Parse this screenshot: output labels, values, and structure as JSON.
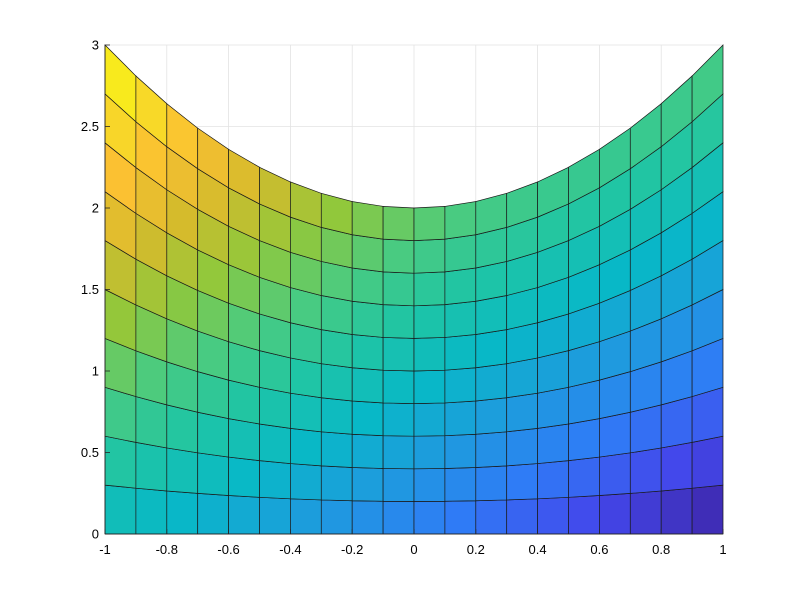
{
  "chart_data": {
    "type": "heatmap",
    "plot_style": "pcolor surface mesh on curved grid",
    "title": "",
    "xlabel": "",
    "ylabel": "",
    "xlim": [
      -1,
      1
    ],
    "ylim": [
      0,
      3
    ],
    "grid": true,
    "x_ticks": [
      -1,
      -0.8,
      -0.6,
      -0.4,
      -0.2,
      0,
      0.2,
      0.4,
      0.6,
      0.8,
      1
    ],
    "x_tick_labels": [
      "-1",
      "-0.8",
      "-0.6",
      "-0.4",
      "-0.2",
      "0",
      "0.2",
      "0.4",
      "0.6",
      "0.8",
      "1"
    ],
    "y_ticks": [
      0,
      0.5,
      1,
      1.5,
      2,
      2.5,
      3
    ],
    "y_tick_labels": [
      "0",
      "0.5",
      "1",
      "1.5",
      "2",
      "2.5",
      "3"
    ],
    "mesh": {
      "x": [
        -1,
        -0.9,
        -0.8,
        -0.7,
        -0.6,
        -0.5,
        -0.4,
        -0.3,
        -0.2,
        -0.1,
        0,
        0.1,
        0.2,
        0.3,
        0.4,
        0.5,
        0.6,
        0.7,
        0.8,
        0.9,
        1
      ],
      "row_fraction": [
        0,
        0.1,
        0.2,
        0.3,
        0.4,
        0.5,
        0.6,
        0.7,
        0.8,
        0.9,
        1
      ],
      "y_formula": "y = row_fraction * (2 + x^2)",
      "color_formula": "c = y - x (smooth colormap, blue to yellow)"
    },
    "colormap": [
      "#3e26a8",
      "#4347eb",
      "#2f7cf6",
      "#1e9bde",
      "#08b8c7",
      "#1fc5a5",
      "#4bcb7f",
      "#91c83b",
      "#d4bb2c",
      "#fbc032",
      "#f7e125",
      "#f9fb0e"
    ],
    "color_range": [
      -1,
      4
    ]
  }
}
